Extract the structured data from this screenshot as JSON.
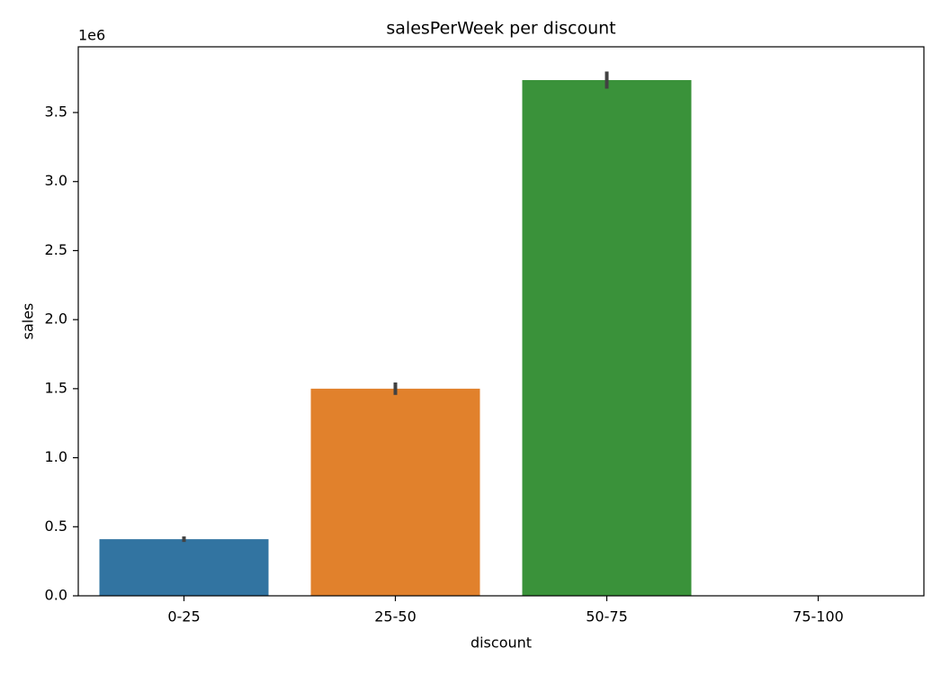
{
  "chart_data": {
    "type": "bar",
    "title": "salesPerWeek per discount",
    "x_label": "discount",
    "y_label": "sales",
    "y_offset_label": "1e6",
    "categories": [
      "0-25",
      "25-50",
      "50-75",
      "75-100"
    ],
    "values": [
      0.41,
      1.5,
      3.735,
      null
    ],
    "errors": [
      0.02,
      0.045,
      0.062,
      null
    ],
    "colors": [
      "#3274a1",
      "#e1812c",
      "#3a923a",
      "#c03d3e"
    ],
    "error_color": "#424242",
    "ylim": [
      0,
      3.976
    ],
    "yticks": [
      {
        "value": 0,
        "label": "0.0"
      },
      0.5,
      {
        "value": 1,
        "label": "1.0"
      },
      1.5,
      {
        "value": 2,
        "label": "2.0"
      },
      2.5,
      {
        "value": 3,
        "label": "3.0"
      },
      3.5
    ],
    "grid": false
  }
}
